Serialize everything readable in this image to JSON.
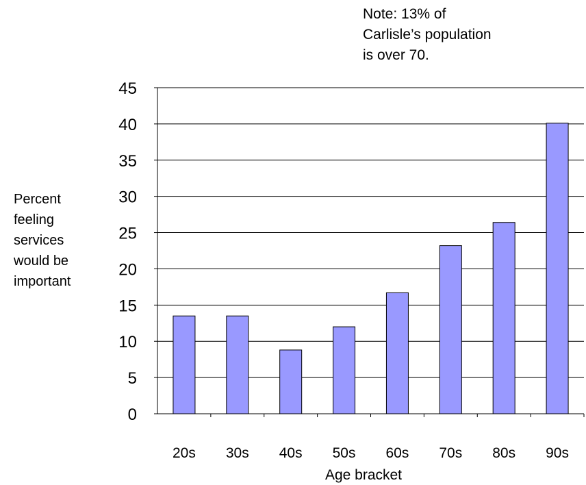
{
  "chart_data": {
    "type": "bar",
    "title": "",
    "annotation_lines": [
      "Note: 13% of",
      "Carlisle’s population",
      "is over 70."
    ],
    "xlabel": "Age bracket",
    "ylabel_lines": [
      "Percent",
      "feeling",
      "services",
      "would be",
      "important"
    ],
    "categories": [
      "20s",
      "30s",
      "40s",
      "50s",
      "60s",
      "70s",
      "80s",
      "90s"
    ],
    "values": [
      13.5,
      13.5,
      8.8,
      12.0,
      16.7,
      23.2,
      26.4,
      40.1
    ],
    "ylim": [
      0,
      45
    ],
    "yticks": [
      "0",
      "5",
      "10",
      "15",
      "20",
      "25",
      "30",
      "35",
      "40",
      "45"
    ],
    "grid": true,
    "legend": "none",
    "bar_color": "#9999ff",
    "bar_edge_color": "#000000"
  }
}
